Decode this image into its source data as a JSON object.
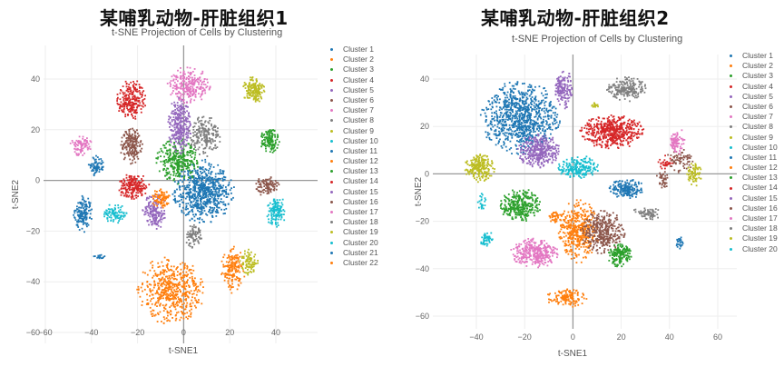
{
  "palette": [
    "#1f77b4",
    "#ff7f0e",
    "#2ca02c",
    "#d62728",
    "#9467bd",
    "#8c564b",
    "#e377c2",
    "#7f7f7f",
    "#bcbd22",
    "#17becf"
  ],
  "chart_data": [
    {
      "type": "scatter",
      "title": "某哺乳动物-肝脏组织1",
      "subtitle": "t-SNE Projection of Cells by Clustering",
      "xlabel": "t-SNE1",
      "ylabel": "t-SNE2",
      "xlim": [
        -60,
        58
      ],
      "ylim": [
        -60,
        52
      ],
      "xticks": [
        -60,
        -40,
        -20,
        0,
        20,
        40
      ],
      "yticks": [
        -60,
        -40,
        -20,
        0,
        20,
        40
      ],
      "grid": true,
      "legend_position": "right",
      "legend": [
        "Cluster 1",
        "Cluster 2",
        "Cluster 3",
        "Cluster 4",
        "Cluster 5",
        "Cluster 6",
        "Cluster 7",
        "Cluster 8",
        "Cluster 9",
        "Cluster 10",
        "Cluster 11",
        "Cluster 12",
        "Cluster 13",
        "Cluster 14",
        "Cluster 15",
        "Cluster 16",
        "Cluster 17",
        "Cluster 18",
        "Cluster 19",
        "Cluster 20",
        "Cluster 21",
        "Cluster 22"
      ],
      "series": [
        {
          "name": "Cluster 1",
          "color_index": 0,
          "blobs": [
            {
              "cx": 8,
              "cy": -4,
              "rx": 13,
              "ry": 12,
              "n": 700
            }
          ]
        },
        {
          "name": "Cluster 2",
          "color_index": 1,
          "blobs": [
            {
              "cx": -6,
              "cy": -43,
              "rx": 14,
              "ry": 13,
              "n": 550
            }
          ]
        },
        {
          "name": "Cluster 3",
          "color_index": 2,
          "blobs": [
            {
              "cx": -3,
              "cy": 8,
              "rx": 9,
              "ry": 9,
              "n": 320
            }
          ]
        },
        {
          "name": "Cluster 4",
          "color_index": 3,
          "blobs": [
            {
              "cx": -22,
              "cy": -2,
              "rx": 7,
              "ry": 5,
              "n": 200
            }
          ]
        },
        {
          "name": "Cluster 5",
          "color_index": 4,
          "blobs": [
            {
              "cx": -2,
              "cy": 22,
              "rx": 5,
              "ry": 11,
              "n": 280
            }
          ]
        },
        {
          "name": "Cluster 6",
          "color_index": 5,
          "blobs": [
            {
              "cx": -23,
              "cy": 14,
              "rx": 5,
              "ry": 7,
              "n": 190
            }
          ]
        },
        {
          "name": "Cluster 7",
          "color_index": 6,
          "blobs": [
            {
              "cx": 2,
              "cy": 38,
              "rx": 9,
              "ry": 7,
              "n": 260
            }
          ]
        },
        {
          "name": "Cluster 8",
          "color_index": 7,
          "blobs": [
            {
              "cx": 9,
              "cy": 18,
              "rx": 7,
              "ry": 8,
              "n": 200
            }
          ]
        },
        {
          "name": "Cluster 9",
          "color_index": 8,
          "blobs": [
            {
              "cx": 30,
              "cy": 36,
              "rx": 5,
              "ry": 5,
              "n": 150
            }
          ]
        },
        {
          "name": "Cluster 10",
          "color_index": 9,
          "blobs": [
            {
              "cx": -30,
              "cy": -13,
              "rx": 5,
              "ry": 4,
              "n": 90
            }
          ]
        },
        {
          "name": "Cluster 11",
          "color_index": 0,
          "blobs": [
            {
              "cx": -44,
              "cy": -13,
              "rx": 4,
              "ry": 7,
              "n": 150
            },
            {
              "cx": -37,
              "cy": -30,
              "rx": 2.5,
              "ry": 1,
              "n": 15
            }
          ]
        },
        {
          "name": "Cluster 12",
          "color_index": 1,
          "blobs": [
            {
              "cx": 21,
              "cy": -35,
              "rx": 5,
              "ry": 9,
              "n": 170
            }
          ]
        },
        {
          "name": "Cluster 13",
          "color_index": 2,
          "blobs": [
            {
              "cx": 37,
              "cy": 16,
              "rx": 4,
              "ry": 5,
              "n": 130
            }
          ]
        },
        {
          "name": "Cluster 14",
          "color_index": 3,
          "blobs": [
            {
              "cx": -23,
              "cy": 32,
              "rx": 6,
              "ry": 8,
              "n": 230
            }
          ]
        },
        {
          "name": "Cluster 15",
          "color_index": 4,
          "blobs": [
            {
              "cx": -13,
              "cy": -12,
              "rx": 5,
              "ry": 7,
              "n": 170
            }
          ]
        },
        {
          "name": "Cluster 16",
          "color_index": 5,
          "blobs": [
            {
              "cx": 36,
              "cy": -2,
              "rx": 5,
              "ry": 4,
              "n": 100
            }
          ]
        },
        {
          "name": "Cluster 17",
          "color_index": 6,
          "blobs": [
            {
              "cx": -45,
              "cy": 14,
              "rx": 5,
              "ry": 4,
              "n": 90
            }
          ]
        },
        {
          "name": "Cluster 18",
          "color_index": 7,
          "blobs": [
            {
              "cx": 4,
              "cy": -22,
              "rx": 3.5,
              "ry": 5,
              "n": 80
            }
          ]
        },
        {
          "name": "Cluster 19",
          "color_index": 8,
          "blobs": [
            {
              "cx": 28,
              "cy": -32,
              "rx": 4,
              "ry": 5,
              "n": 90
            }
          ]
        },
        {
          "name": "Cluster 20",
          "color_index": 9,
          "blobs": [
            {
              "cx": 40,
              "cy": -12,
              "rx": 4.5,
              "ry": 6,
              "n": 130
            }
          ]
        },
        {
          "name": "Cluster 21",
          "color_index": 0,
          "blobs": [
            {
              "cx": -38,
              "cy": 6,
              "rx": 3.5,
              "ry": 4,
              "n": 70
            }
          ]
        },
        {
          "name": "Cluster 22",
          "color_index": 1,
          "blobs": [
            {
              "cx": -10,
              "cy": -7,
              "rx": 4,
              "ry": 4,
              "n": 90
            }
          ]
        }
      ]
    },
    {
      "type": "scatter",
      "title": "某哺乳动物-肝脏组织2",
      "subtitle": "t-SNE Projection of Cells by Clustering",
      "xlabel": "t-SNE1",
      "ylabel": "t-SNE2",
      "xlim": [
        -55,
        60
      ],
      "ylim": [
        -66,
        52
      ],
      "xticks": [
        -40,
        -20,
        0,
        20,
        40,
        60
      ],
      "yticks": [
        -60,
        -40,
        -20,
        0,
        20,
        40
      ],
      "grid": true,
      "legend_position": "right",
      "legend": [
        "Cluster 1",
        "Cluster 2",
        "Cluster 3",
        "Cluster 4",
        "Cluster 5",
        "Cluster 6",
        "Cluster 7",
        "Cluster 8",
        "Cluster 9",
        "Cluster 10",
        "Cluster 11",
        "Cluster 12",
        "Cluster 13",
        "Cluster 14",
        "Cluster 15",
        "Cluster 16",
        "Cluster 17",
        "Cluster 18",
        "Cluster 19",
        "Cluster 20"
      ],
      "series": [
        {
          "name": "Cluster 1",
          "color_index": 0,
          "blobs": [
            {
              "cx": -22,
              "cy": 24,
              "rx": 16,
              "ry": 15,
              "n": 900
            }
          ]
        },
        {
          "name": "Cluster 2",
          "color_index": 1,
          "blobs": [
            {
              "cx": 2,
              "cy": -24,
              "rx": 8,
              "ry": 13,
              "n": 420
            },
            {
              "cx": -3,
              "cy": -52,
              "rx": 8,
              "ry": 4,
              "n": 130
            }
          ]
        },
        {
          "name": "Cluster 3",
          "color_index": 2,
          "blobs": [
            {
              "cx": -22,
              "cy": -13,
              "rx": 8,
              "ry": 7,
              "n": 300
            }
          ]
        },
        {
          "name": "Cluster 4",
          "color_index": 3,
          "blobs": [
            {
              "cx": 16,
              "cy": 18,
              "rx": 13,
              "ry": 7,
              "n": 520
            }
          ]
        },
        {
          "name": "Cluster 5",
          "color_index": 4,
          "blobs": [
            {
              "cx": -14,
              "cy": 10,
              "rx": 9,
              "ry": 7,
              "n": 330
            },
            {
              "cx": -4,
              "cy": 36,
              "rx": 3.5,
              "ry": 8,
              "n": 110
            }
          ]
        },
        {
          "name": "Cluster 6",
          "color_index": 5,
          "blobs": [
            {
              "cx": 12,
              "cy": -24,
              "rx": 9,
              "ry": 9,
              "n": 360
            },
            {
              "cx": 44,
              "cy": 6,
              "rx": 6,
              "ry": 5,
              "n": 70
            }
          ]
        },
        {
          "name": "Cluster 7",
          "color_index": 6,
          "blobs": [
            {
              "cx": -16,
              "cy": -33,
              "rx": 10,
              "ry": 6,
              "n": 330
            },
            {
              "cx": 43,
              "cy": 14,
              "rx": 3,
              "ry": 6,
              "n": 60
            }
          ]
        },
        {
          "name": "Cluster 8",
          "color_index": 7,
          "blobs": [
            {
              "cx": 22,
              "cy": 36,
              "rx": 8,
              "ry": 5,
              "n": 200
            },
            {
              "cx": 30,
              "cy": -16,
              "rx": 6,
              "ry": 2,
              "n": 40
            }
          ]
        },
        {
          "name": "Cluster 9",
          "color_index": 8,
          "blobs": [
            {
              "cx": -39,
              "cy": 3,
              "rx": 6,
              "ry": 6,
              "n": 220
            },
            {
              "cx": 50,
              "cy": 0,
              "rx": 3,
              "ry": 5,
              "n": 70
            }
          ]
        },
        {
          "name": "Cluster 10",
          "color_index": 9,
          "blobs": [
            {
              "cx": 2,
              "cy": 3,
              "rx": 8,
              "ry": 5,
              "n": 200
            }
          ]
        },
        {
          "name": "Cluster 11",
          "color_index": 0,
          "blobs": [
            {
              "cx": 22,
              "cy": -6,
              "rx": 7,
              "ry": 4,
              "n": 190
            },
            {
              "cx": 44,
              "cy": -29,
              "rx": 1.5,
              "ry": 3,
              "n": 25
            }
          ]
        },
        {
          "name": "Cluster 12",
          "color_index": 1,
          "blobs": [
            {
              "cx": -8,
              "cy": -18,
              "rx": 3,
              "ry": 3,
              "n": 40
            }
          ]
        },
        {
          "name": "Cluster 13",
          "color_index": 2,
          "blobs": [
            {
              "cx": 19,
              "cy": -34,
              "rx": 5,
              "ry": 5,
              "n": 170
            }
          ]
        },
        {
          "name": "Cluster 14",
          "color_index": 3,
          "blobs": [
            {
              "cx": 38,
              "cy": 5,
              "rx": 3,
              "ry": 3,
              "n": 30
            }
          ]
        },
        {
          "name": "Cluster 15",
          "color_index": 4,
          "blobs": [
            {
              "cx": -6,
              "cy": 36,
              "rx": 2,
              "ry": 5,
              "n": 40
            }
          ]
        },
        {
          "name": "Cluster 16",
          "color_index": 5,
          "blobs": [
            {
              "cx": 37,
              "cy": -2,
              "rx": 3,
              "ry": 4,
              "n": 40
            }
          ]
        },
        {
          "name": "Cluster 17",
          "color_index": 6,
          "blobs": [
            {
              "cx": 42,
              "cy": 13,
              "rx": 2,
              "ry": 4,
              "n": 30
            }
          ]
        },
        {
          "name": "Cluster 18",
          "color_index": 7,
          "blobs": [
            {
              "cx": 32,
              "cy": -17,
              "rx": 4,
              "ry": 2,
              "n": 30
            }
          ]
        },
        {
          "name": "Cluster 19",
          "color_index": 8,
          "blobs": [
            {
              "cx": 9,
              "cy": 29,
              "rx": 2,
              "ry": 1.5,
              "n": 15
            }
          ]
        },
        {
          "name": "Cluster 20",
          "color_index": 9,
          "blobs": [
            {
              "cx": -36,
              "cy": -27,
              "rx": 3,
              "ry": 3,
              "n": 50
            },
            {
              "cx": -38,
              "cy": -12,
              "rx": 2,
              "ry": 4,
              "n": 25
            }
          ]
        }
      ]
    }
  ],
  "panels": [
    {
      "title": "某哺乳动物-肝脏组织1",
      "subtitle": "t-SNE Projection of Cells by Clustering"
    },
    {
      "title": "某哺乳动物-肝脏组织2",
      "subtitle": "t-SNE Projection of Cells by Clustering"
    }
  ]
}
